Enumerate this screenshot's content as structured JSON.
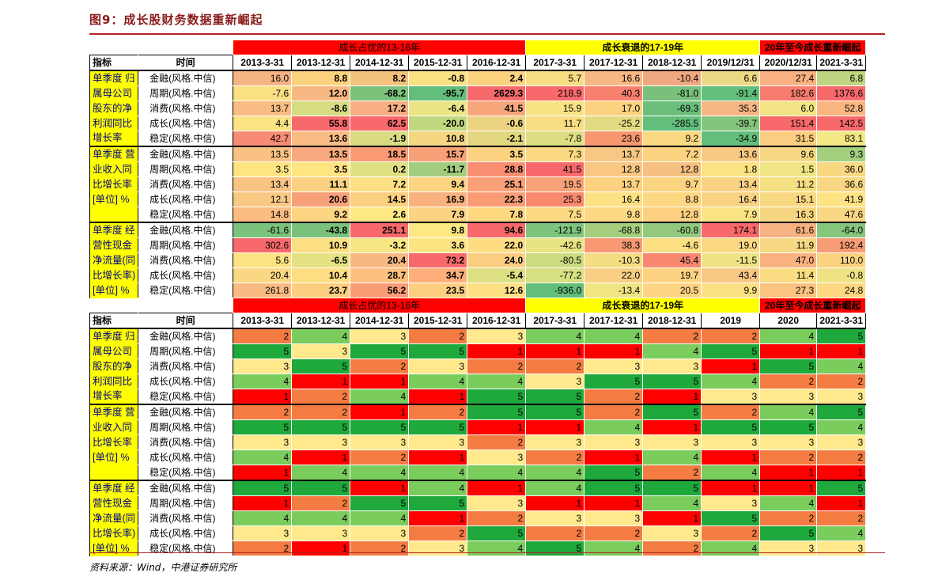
{
  "title": "图9：成长股财务数据重新崛起",
  "source": "资料来源：Wind，中港证券研究所",
  "periods": [
    "成长占优的13-16年",
    "成长衰退的17-19年",
    "20年至今成长重新崛起"
  ],
  "header_labels": {
    "indicator": "指标",
    "time": "时间"
  },
  "dates_top": [
    "2013-3-31",
    "2013-12-31",
    "2014-12-31",
    "2015-12-31",
    "2016-12-31",
    "2017-3-31",
    "2017-12-31",
    "2018-12-31",
    "2019/12/31",
    "2020/12/31",
    "2021-3-31"
  ],
  "dates_bottom": [
    "2013-3-31",
    "2013-12-31",
    "2014-12-31",
    "2015-12-31",
    "2016-12-31",
    "2017-3-31",
    "2017-12-31",
    "2018-12-31",
    "2019",
    "2020",
    "2021-3-31"
  ],
  "styles": [
    "金融(风格.中信)",
    "周期(风格.中信)",
    "消费(风格.中信)",
    "成长(风格.中信)",
    "稳定(风格.中信)"
  ],
  "indicators": [
    [
      "单季度 归",
      "属母公司",
      "股东的净",
      "利润同比",
      "增长率"
    ],
    [
      "单季度 营",
      "业收入同",
      "比增长率",
      "[单位] %",
      ""
    ],
    [
      "单季度 经",
      "营性现金",
      "净流量(同",
      "比增长率)",
      "[单位] %"
    ]
  ],
  "values": [
    [
      [
        "16.0",
        "8.8",
        "8.2",
        "-0.8",
        "2.4",
        "5.7",
        "16.6",
        "-10.4",
        "6.6",
        "27.4",
        "6.8"
      ],
      [
        "-7.6",
        "12.0",
        "-68.2",
        "-95.7",
        "2629.3",
        "218.9",
        "40.3",
        "-81.0",
        "-91.4",
        "182.6",
        "1376.6"
      ],
      [
        "13.7",
        "-8.6",
        "17.2",
        "-6.4",
        "41.5",
        "15.9",
        "17.0",
        "-69.3",
        "35.3",
        "6.0",
        "52.8"
      ],
      [
        "4.4",
        "55.8",
        "62.5",
        "-20.0",
        "-0.6",
        "11.7",
        "-25.2",
        "-285.5",
        "-39.7",
        "151.4",
        "142.5"
      ],
      [
        "42.7",
        "13.6",
        "-1.9",
        "10.8",
        "-2.1",
        "-7.8",
        "23.6",
        "9.2",
        "-34.9",
        "31.5",
        "83.1"
      ]
    ],
    [
      [
        "13.5",
        "13.5",
        "18.5",
        "15.7",
        "3.5",
        "7.3",
        "13.7",
        "7.2",
        "13.6",
        "9.6",
        "9.3"
      ],
      [
        "3.5",
        "3.5",
        "0.2",
        "-11.7",
        "28.8",
        "41.5",
        "12.8",
        "12.8",
        "1.8",
        "1.5",
        "36.0"
      ],
      [
        "13.4",
        "11.1",
        "7.2",
        "9.4",
        "25.1",
        "19.5",
        "13.7",
        "9.7",
        "13.4",
        "11.2",
        "36.6"
      ],
      [
        "12.1",
        "20.6",
        "14.5",
        "16.9",
        "22.3",
        "25.3",
        "16.4",
        "8.8",
        "16.4",
        "15.1",
        "41.9"
      ],
      [
        "14.8",
        "9.2",
        "2.6",
        "7.9",
        "7.8",
        "7.5",
        "9.8",
        "12.8",
        "7.9",
        "16.3",
        "47.6"
      ]
    ],
    [
      [
        "-61.6",
        "-43.8",
        "251.1",
        "9.8",
        "94.6",
        "-121.9",
        "-68.8",
        "-60.8",
        "174.1",
        "61.6",
        "-64.0"
      ],
      [
        "302.6",
        "10.9",
        "-3.2",
        "3.6",
        "22.0",
        "-42.6",
        "38.3",
        "-4.6",
        "19.0",
        "11.9",
        "192.4"
      ],
      [
        "5.6",
        "-6.5",
        "20.4",
        "73.2",
        "24.0",
        "-80.5",
        "-10.3",
        "45.4",
        "-11.5",
        "47.0",
        "110.0"
      ],
      [
        "20.4",
        "10.4",
        "28.7",
        "34.7",
        "-5.4",
        "-77.2",
        "22.0",
        "19.7",
        "43.4",
        "11.4",
        "-0.8"
      ],
      [
        "261.8",
        "23.7",
        "56.2",
        "23.5",
        "12.6",
        "-936.0",
        "-13.4",
        "20.5",
        "9.9",
        "27.3",
        "24.8"
      ]
    ]
  ],
  "ranks": [
    [
      [
        "2",
        "4",
        "3",
        "2",
        "3",
        "4",
        "4",
        "2",
        "2",
        "4",
        "5"
      ],
      [
        "5",
        "3",
        "5",
        "5",
        "1",
        "1",
        "1",
        "4",
        "5",
        "1",
        "1"
      ],
      [
        "3",
        "5",
        "2",
        "3",
        "2",
        "2",
        "3",
        "3",
        "1",
        "5",
        "4"
      ],
      [
        "4",
        "1",
        "1",
        "4",
        "4",
        "3",
        "5",
        "5",
        "4",
        "2",
        "2"
      ],
      [
        "1",
        "2",
        "4",
        "1",
        "5",
        "5",
        "2",
        "1",
        "3",
        "3",
        "3"
      ]
    ],
    [
      [
        "2",
        "2",
        "1",
        "2",
        "5",
        "5",
        "2",
        "5",
        "2",
        "4",
        "5"
      ],
      [
        "5",
        "5",
        "5",
        "5",
        "1",
        "1",
        "4",
        "1",
        "5",
        "5",
        "4"
      ],
      [
        "3",
        "3",
        "3",
        "3",
        "2",
        "3",
        "3",
        "3",
        "3",
        "3",
        "3"
      ],
      [
        "4",
        "1",
        "2",
        "1",
        "3",
        "2",
        "1",
        "4",
        "1",
        "2",
        "2"
      ],
      [
        "1",
        "4",
        "4",
        "4",
        "4",
        "4",
        "5",
        "2",
        "4",
        "1",
        "1"
      ]
    ],
    [
      [
        "5",
        "5",
        "1",
        "4",
        "1",
        "4",
        "5",
        "5",
        "1",
        "1",
        "5"
      ],
      [
        "1",
        "2",
        "5",
        "5",
        "3",
        "1",
        "1",
        "4",
        "3",
        "4",
        "1"
      ],
      [
        "4",
        "4",
        "4",
        "1",
        "2",
        "3",
        "3",
        "1",
        "5",
        "2",
        "2"
      ],
      [
        "3",
        "3",
        "3",
        "2",
        "5",
        "2",
        "2",
        "3",
        "2",
        "5",
        "4"
      ],
      [
        "2",
        "1",
        "2",
        "3",
        "4",
        "5",
        "4",
        "2",
        "4",
        "3",
        "3"
      ]
    ]
  ],
  "value_colors": [
    [
      [
        "#f6b384",
        "#fbd27e",
        "#f3c27d",
        "#f8e083",
        "#fbd27e",
        "#f8dd82",
        "#f8b883",
        "#f0a880",
        "#ecd986",
        "#f9b082",
        "#bfd57f"
      ],
      [
        "#fbe083",
        "#f8b883",
        "#7dc27b",
        "#63be7b",
        "#f8696b",
        "#f8696b",
        "#f8806f",
        "#78c07b",
        "#63be7b",
        "#f87c6e",
        "#f8696b"
      ],
      [
        "#f9bd83",
        "#d5dc82",
        "#f9ad82",
        "#ebe585",
        "#f8a77c",
        "#f7e383",
        "#fcd17f",
        "#6bbf7b",
        "#f6b684",
        "#f2e384",
        "#fbb680"
      ],
      [
        "#fbe283",
        "#f8696b",
        "#f8696b",
        "#c0d880",
        "#ecd382",
        "#f8dd82",
        "#e3db83",
        "#63be7b",
        "#85c47c",
        "#f8696b",
        "#f8696b"
      ],
      [
        "#f88b73",
        "#f9bd83",
        "#d9db82",
        "#f5d783",
        "#e2d67f",
        "#dcde83",
        "#f8976f",
        "#fbd982",
        "#63be7b",
        "#fbcd80",
        "#f2e884"
      ]
    ],
    [
      [
        "#f9c283",
        "#f7a87e",
        "#f99a75",
        "#f8a179",
        "#fcd280",
        "#fbd983",
        "#f8c783",
        "#fcd381",
        "#f8c983",
        "#f6d783",
        "#a3cf7e"
      ],
      [
        "#fee582",
        "#fee582",
        "#dfe081",
        "#a2cd7e",
        "#f98e72",
        "#f8696b",
        "#f9c683",
        "#f5c082",
        "#fbe282",
        "#f0e585",
        "#f9d882"
      ],
      [
        "#f9c383",
        "#fad182",
        "#fde083",
        "#fcd381",
        "#f9a079",
        "#f8a279",
        "#fcd181",
        "#fbd481",
        "#f9d283",
        "#f4df83",
        "#f9d782"
      ],
      [
        "#f9c883",
        "#f7a17a",
        "#fbcf80",
        "#f9b17e",
        "#f99c76",
        "#f8896f",
        "#fce083",
        "#fdd782",
        "#f9d283",
        "#f9d882",
        "#fde383"
      ],
      [
        "#fbbc81",
        "#fcd582",
        "#fde883",
        "#fbd382",
        "#fed87f",
        "#fcd982",
        "#fdd882",
        "#fcd080",
        "#fce383",
        "#f7d681",
        "#f9d682"
      ]
    ],
    [
      [
        "#7bc37c",
        "#7ac27c",
        "#f8696b",
        "#fde883",
        "#f8696b",
        "#7fc47d",
        "#a5cf7e",
        "#93c97d",
        "#f8696b",
        "#f6b283",
        "#85c57c"
      ],
      [
        "#f8696b",
        "#fbdf82",
        "#f7e684",
        "#fde483",
        "#fddc82",
        "#e8e383",
        "#f89974",
        "#fbdf82",
        "#fbd983",
        "#f6d883",
        "#f89c76"
      ],
      [
        "#fbe383",
        "#e5e283",
        "#f7b882",
        "#f8696b",
        "#fbcd80",
        "#ccdb82",
        "#f4dd83",
        "#f88870",
        "#eee385",
        "#f9b17f",
        "#fbd280"
      ],
      [
        "#fad883",
        "#fdde82",
        "#fdc07f",
        "#fdae7a",
        "#dce083",
        "#d6df82",
        "#f7ce84",
        "#fdd382",
        "#f8c783",
        "#fbdd83",
        "#eee384"
      ],
      [
        "#f9bb81",
        "#fdce80",
        "#f99d77",
        "#fdce80",
        "#fde083",
        "#63be7b",
        "#f1e483",
        "#fdd582",
        "#fbdf83",
        "#fac380",
        "#fed881"
      ]
    ]
  ],
  "rank_colors": {
    "1": "#ff0000",
    "2": "#f47c42",
    "3": "#ffe98c",
    "4": "#7acc5c",
    "5": "#1fa83c"
  },
  "bold_columns": [
    1,
    2,
    3,
    4
  ]
}
